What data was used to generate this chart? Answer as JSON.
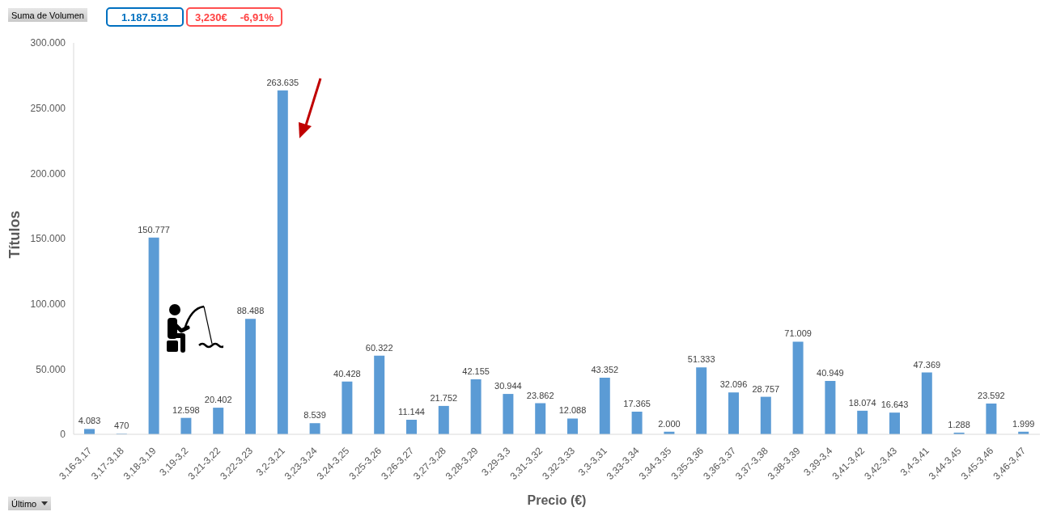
{
  "chart_data": {
    "type": "bar",
    "xlabel": "Precio (€)",
    "ylabel": "Títulos",
    "categories": [
      "3,16-3,17",
      "3,17-3,18",
      "3,18-3,19",
      "3,19-3,2",
      "3,21-3,22",
      "3,22-3,23",
      "3,2-3,21",
      "3,23-3,24",
      "3,24-3,25",
      "3,25-3,26",
      "3,26-3,27",
      "3,27-3,28",
      "3,28-3,29",
      "3,29-3,3",
      "3,31-3,32",
      "3,32-3,33",
      "3,3-3,31",
      "3,33-3,34",
      "3,34-3,35",
      "3,35-3,36",
      "3,36-3,37",
      "3,37-3,38",
      "3,38-3,39",
      "3,39-3,4",
      "3,41-3,42",
      "3,42-3,43",
      "3,4-3,41",
      "3,44-3,45",
      "3,45-3,46",
      "3,46-3,47"
    ],
    "values": [
      4083,
      470,
      150777,
      12598,
      20402,
      88488,
      263635,
      8539,
      40428,
      60322,
      11144,
      21752,
      42155,
      30944,
      23862,
      12088,
      43352,
      17365,
      2000,
      51333,
      32096,
      28757,
      71009,
      40949,
      18074,
      16643,
      47369,
      1288,
      23592,
      1999
    ],
    "value_labels": [
      "4.083",
      "470",
      "150.777",
      "12.598",
      "20.402",
      "88.488",
      "263.635",
      "8.539",
      "40.428",
      "60.322",
      "11.144",
      "21.752",
      "42.155",
      "30.944",
      "23.862",
      "12.088",
      "43.352",
      "17.365",
      "2.000",
      "51.333",
      "32.096",
      "28.757",
      "71.009",
      "40.949",
      "18.074",
      "16.643",
      "47.369",
      "1.288",
      "23.592",
      "1.999"
    ],
    "color": "#5b9bd5",
    "ylim": [
      0,
      300000
    ],
    "yticks": [
      0,
      {
        "value": 50000,
        "label": "50.000"
      },
      {
        "value": 100000,
        "label": "100.000"
      },
      {
        "value": 150000,
        "label": "150.000"
      },
      {
        "value": 200000,
        "label": "200.000"
      },
      {
        "value": 250000,
        "label": "250.000"
      },
      {
        "value": 300000,
        "label": "300.000"
      }
    ],
    "annotations": [
      "Suma de Volumen",
      "1.187.513",
      "3,230€",
      "-6,91%",
      "Último"
    ]
  }
}
